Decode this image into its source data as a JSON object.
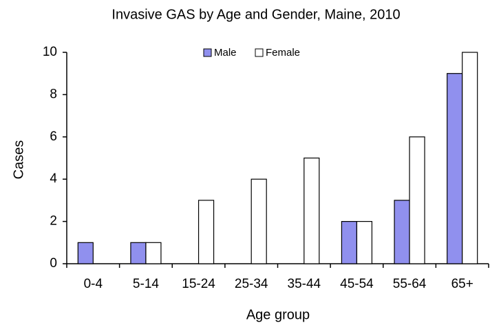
{
  "chart_data": {
    "type": "bar",
    "title": "Invasive GAS by Age and Gender, Maine, 2010",
    "x_label": "Age group",
    "y_label": "Cases",
    "categories": [
      "0-4",
      "5-14",
      "15-24",
      "25-34",
      "35-44",
      "45-54",
      "55-64",
      "65+"
    ],
    "series": [
      {
        "name": "Male",
        "color": "#9090ee",
        "values": [
          1,
          1,
          0,
          0,
          0,
          2,
          3,
          9
        ]
      },
      {
        "name": "Female",
        "color": "#ffffff",
        "values": [
          0,
          1,
          3,
          4,
          5,
          2,
          6,
          10
        ]
      }
    ],
    "ylim": [
      0,
      10
    ],
    "yticks": [
      0,
      2,
      4,
      6,
      8,
      10
    ],
    "legend": "top",
    "grid": false
  }
}
